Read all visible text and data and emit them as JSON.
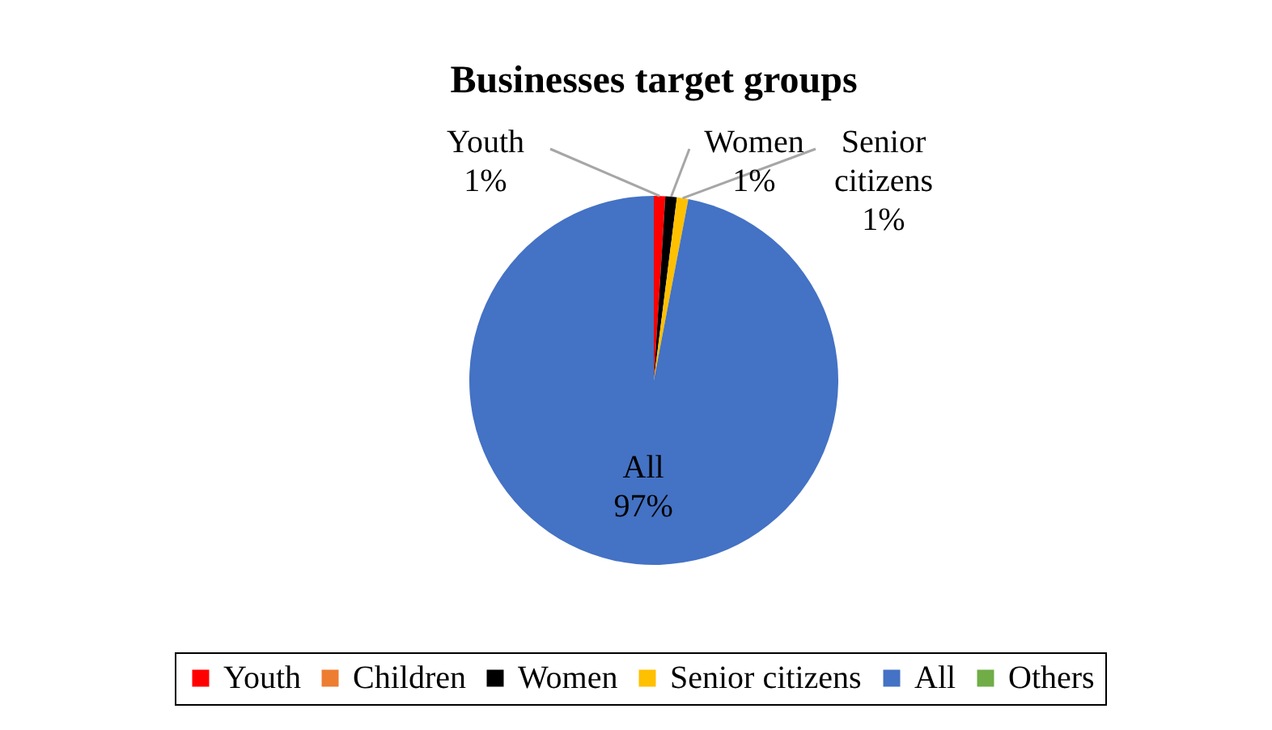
{
  "chart_data": {
    "type": "pie",
    "title": "Businesses target groups",
    "categories": [
      "Youth",
      "Children",
      "Women",
      "Senior citizens",
      "All",
      "Others"
    ],
    "values": [
      1,
      0,
      1,
      1,
      97,
      0
    ],
    "colors": [
      "#ff0000",
      "#ed7d31",
      "#000000",
      "#ffc000",
      "#4472c4",
      "#70ad47"
    ],
    "value_labels": [
      "1%",
      null,
      "1%",
      "1%",
      "97%",
      null
    ],
    "legend": "bottom"
  }
}
